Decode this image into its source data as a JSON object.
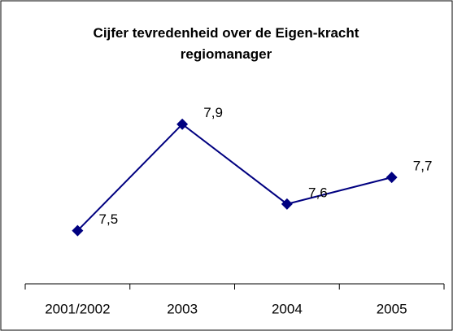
{
  "chart_data": {
    "type": "line",
    "title": "Cijfer tevredenheid over de Eigen-kracht regiomanager",
    "categories": [
      "2001/2002",
      "2003",
      "2004",
      "2005"
    ],
    "values": [
      7.5,
      7.9,
      7.6,
      7.7
    ],
    "value_labels": [
      "7,5",
      "7,9",
      "7,6",
      "7,7"
    ],
    "color": "#000080",
    "ylim": [
      7.3,
      8.0
    ]
  }
}
